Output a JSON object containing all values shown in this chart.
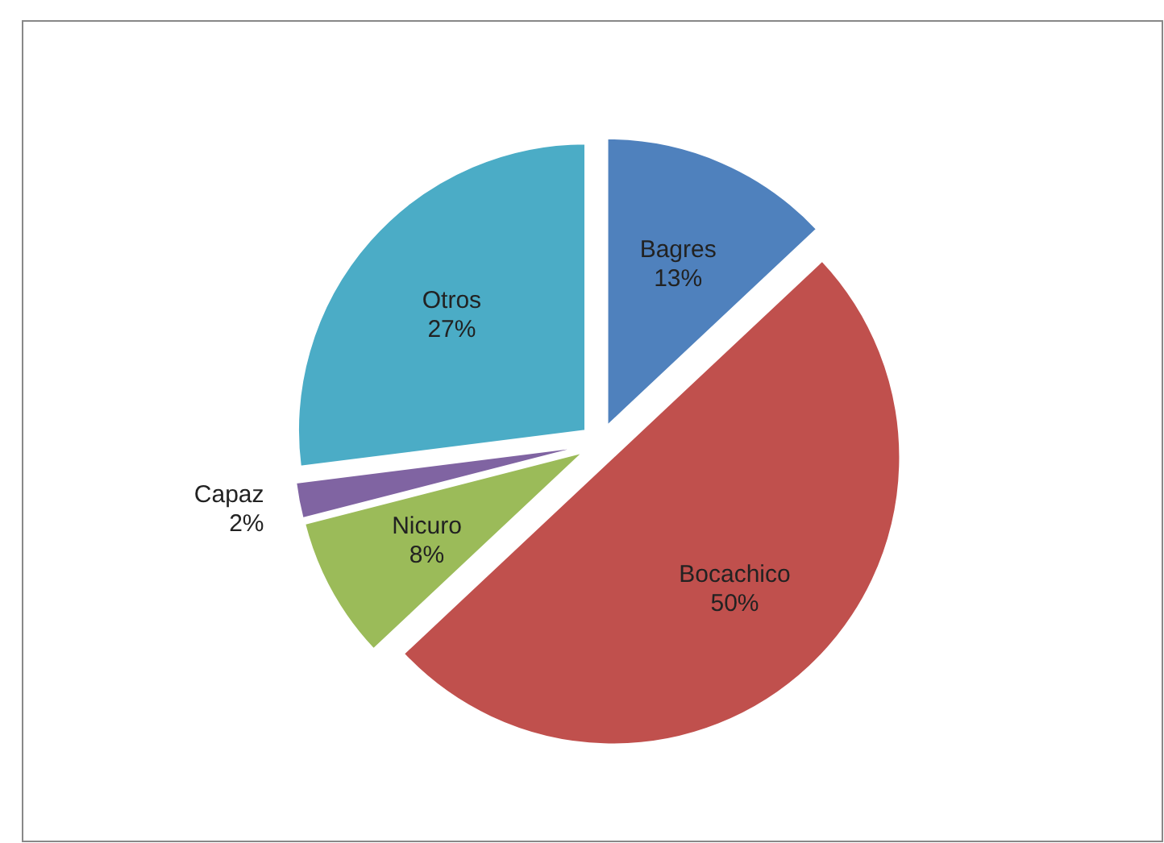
{
  "chart_data": {
    "type": "pie",
    "categories": [
      "Bagres",
      "Bocachico",
      "Nicuro",
      "Capaz",
      "Otros"
    ],
    "values": [
      13,
      50,
      8,
      2,
      27
    ],
    "value_labels": [
      "13%",
      "50%",
      "8%",
      "2%",
      "27%"
    ],
    "colors": [
      "#4f81bd",
      "#c0504d",
      "#9bbb59",
      "#8064a2",
      "#4bacc6"
    ]
  }
}
